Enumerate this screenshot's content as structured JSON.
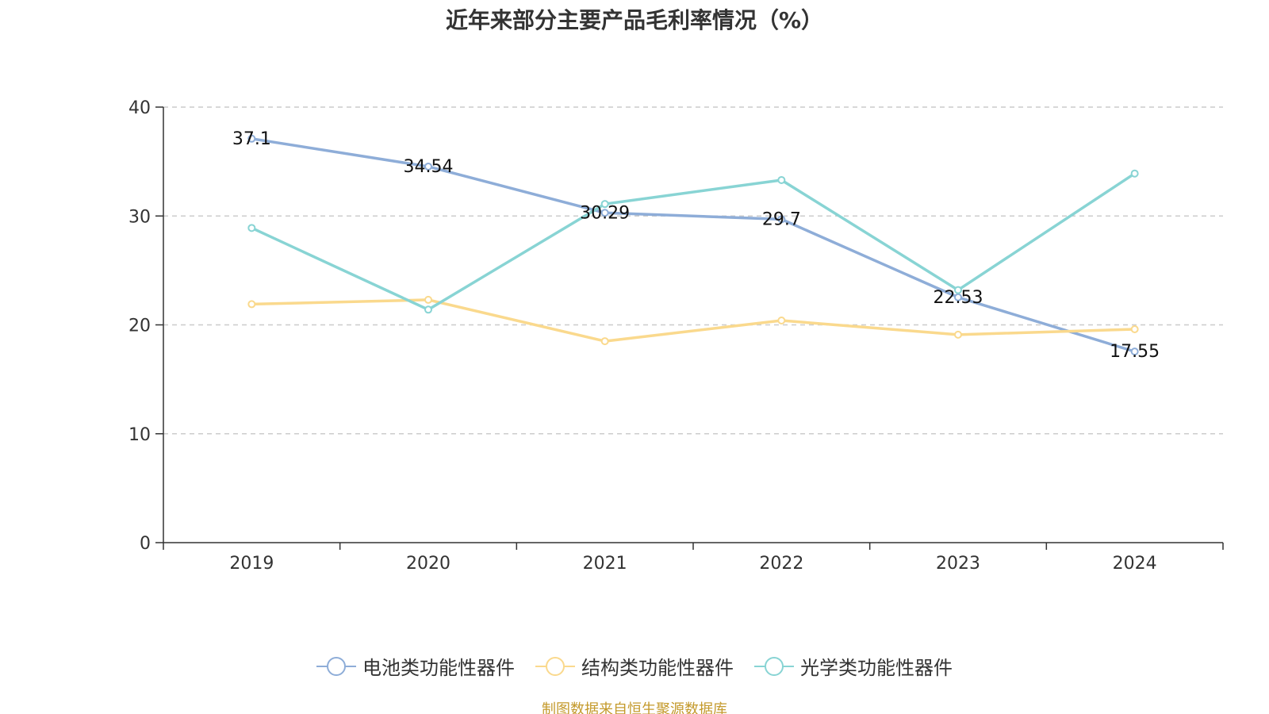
{
  "chart_data": {
    "type": "line",
    "title": "近年来部分主要产品毛利率情况（%）",
    "categories": [
      "2019",
      "2020",
      "2021",
      "2022",
      "2023",
      "2024"
    ],
    "ylim": [
      0,
      40
    ],
    "yticks": [
      0,
      10,
      20,
      30,
      40
    ],
    "grid": "horizontal dashed",
    "legend": "bottom-center",
    "series": [
      {
        "name": "电池类功能性器件",
        "color": "#8eadd8",
        "values": [
          37.1,
          34.54,
          30.29,
          29.7,
          22.53,
          17.55
        ],
        "labels": [
          "37.1",
          "34.54",
          "30.29",
          "29.7",
          "22.53",
          "17.55"
        ]
      },
      {
        "name": "结构类功能性器件",
        "color": "#fad98d",
        "values": [
          21.9,
          22.3,
          18.5,
          20.4,
          19.1,
          19.6
        ],
        "labels": []
      },
      {
        "name": "光学类功能性器件",
        "color": "#88d4d4",
        "values": [
          28.9,
          21.4,
          31.1,
          33.3,
          23.2,
          33.9
        ],
        "labels": []
      }
    ]
  },
  "source": "制图数据来自恒生聚源数据库"
}
